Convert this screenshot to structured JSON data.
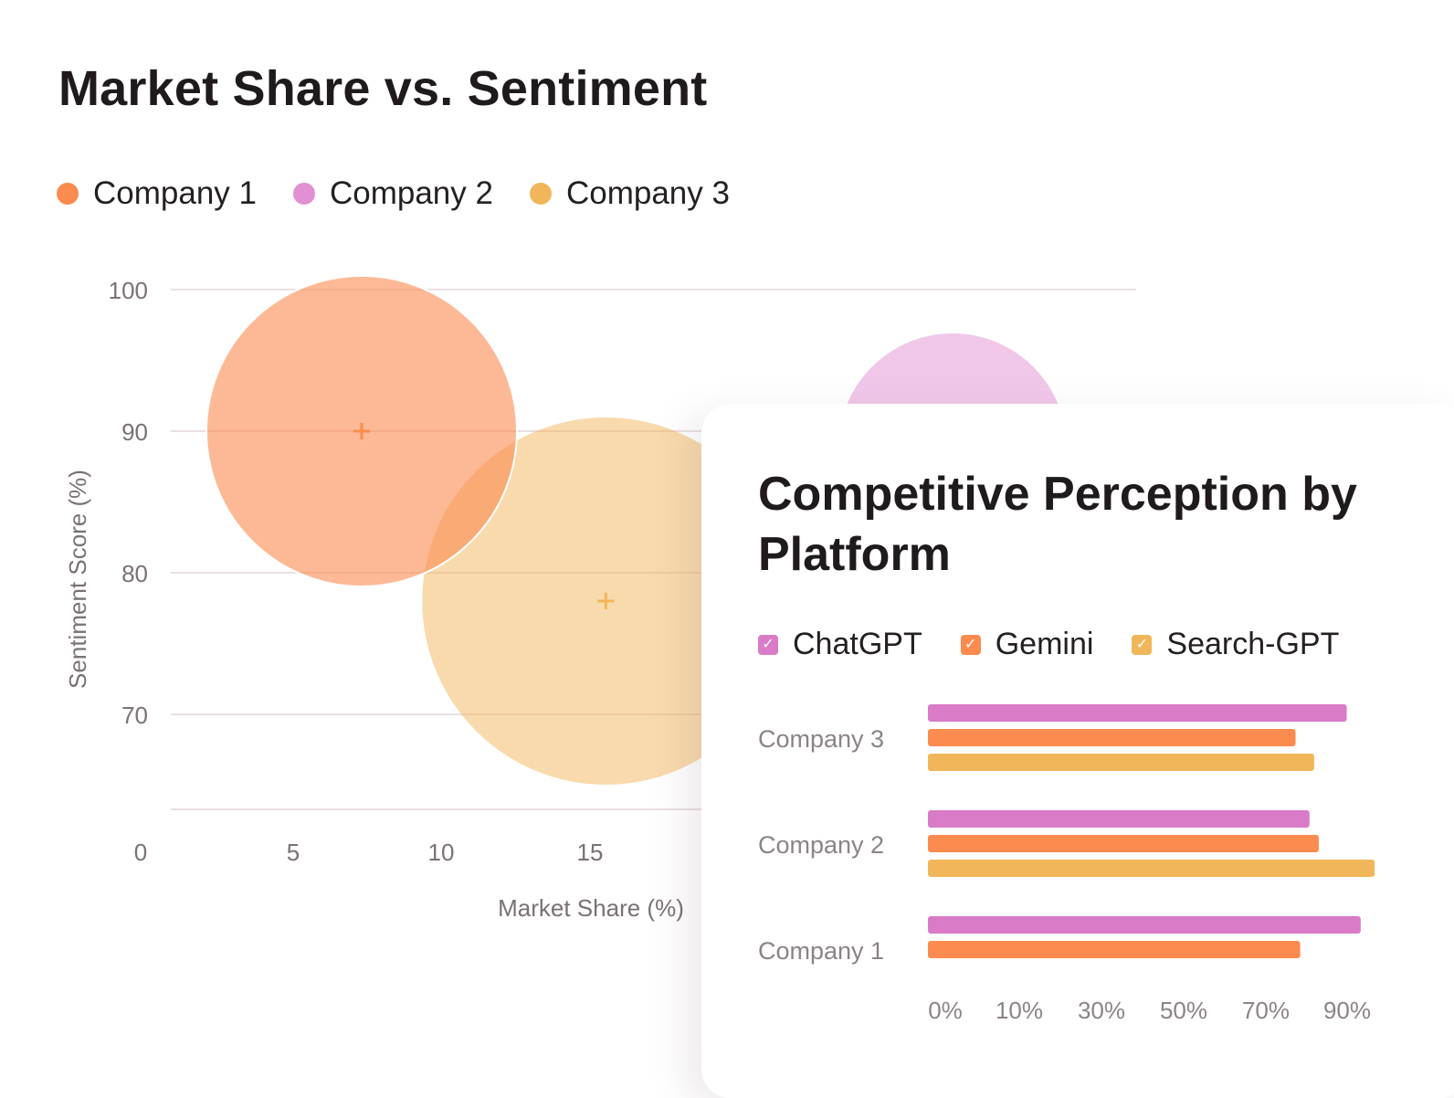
{
  "chart_data": [
    {
      "type": "scatter",
      "subtype": "bubble",
      "title": "Market Share vs. Sentiment",
      "xlabel": "Market Share (%)",
      "ylabel": "Sentiment Score (%)",
      "x_ticks": [
        "0",
        "5",
        "10",
        "15"
      ],
      "y_ticks": [
        "100",
        "90",
        "80",
        "70"
      ],
      "grid": true,
      "legend_position": "top-left",
      "series": [
        {
          "name": "Company 1",
          "color": "#fb8b4e",
          "x": 7.3,
          "y": 90,
          "size": "large"
        },
        {
          "name": "Company 2",
          "color": "#e28fd3",
          "x": 27,
          "y": 87,
          "size": "medium"
        },
        {
          "name": "Company 3",
          "color": "#f2b65a",
          "x": 15.5,
          "y": 78,
          "size": "largest"
        }
      ]
    },
    {
      "type": "bar",
      "orientation": "horizontal",
      "title": "Competitive Perception by Platform",
      "categories": [
        "Company 3",
        "Company 2",
        "Company 1"
      ],
      "x_ticks": [
        "0%",
        "10%",
        "30%",
        "50%",
        "70%",
        "90%"
      ],
      "legend_position": "top",
      "series": [
        {
          "name": "ChatGPT",
          "color": "#d97bc6",
          "values": [
            90,
            82,
            93
          ]
        },
        {
          "name": "Gemini",
          "color": "#fb8b4e",
          "values": [
            79,
            84,
            80
          ]
        },
        {
          "name": "Search-GPT",
          "color": "#f2b65a",
          "values": [
            83,
            96,
            null
          ]
        }
      ]
    }
  ],
  "check_glyph": "✓"
}
